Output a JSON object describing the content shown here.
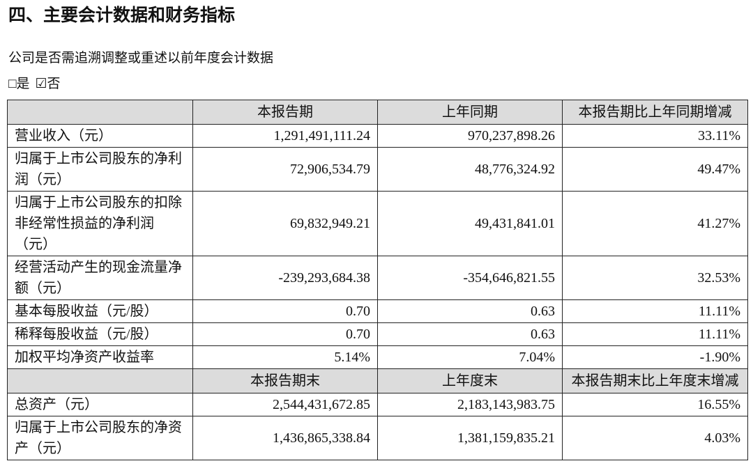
{
  "header": {
    "title": "四、主要会计数据和财务指标"
  },
  "question": "公司是否需追溯调整或重述以前年度会计数据",
  "options": [
    "□是",
    "☑否"
  ],
  "table": {
    "sections": [
      {
        "columns": [
          "本报告期",
          "上年同期",
          "本报告期比上年同期增减"
        ],
        "rows": [
          {
            "label": "营业收入（元）",
            "values": [
              "1,291,491,111.24",
              "970,237,898.26",
              "33.11%"
            ]
          },
          {
            "label": "归属于上市公司股东的净利润（元）",
            "values": [
              "72,906,534.79",
              "48,776,324.92",
              "49.47%"
            ]
          },
          {
            "label": "归属于上市公司股东的扣除非经常性损益的净利润（元）",
            "values": [
              "69,832,949.21",
              "49,431,841.01",
              "41.27%"
            ]
          },
          {
            "label": "经营活动产生的现金流量净额（元）",
            "values": [
              "-239,293,684.38",
              "-354,646,821.55",
              "32.53%"
            ]
          },
          {
            "label": "基本每股收益（元/股）",
            "values": [
              "0.70",
              "0.63",
              "11.11%"
            ]
          },
          {
            "label": "稀释每股收益（元/股）",
            "values": [
              "0.70",
              "0.63",
              "11.11%"
            ]
          },
          {
            "label": "加权平均净资产收益率",
            "values": [
              "5.14%",
              "7.04%",
              "-1.90%"
            ]
          }
        ]
      },
      {
        "columns": [
          "本报告期末",
          "上年度末",
          "本报告期末比上年度末增减"
        ],
        "rows": [
          {
            "label": "总资产（元）",
            "values": [
              "2,544,431,672.85",
              "2,183,143,983.75",
              "16.55%"
            ]
          },
          {
            "label": "归属于上市公司股东的净资产（元）",
            "values": [
              "1,436,865,338.84",
              "1,381,159,835.21",
              "4.03%"
            ]
          }
        ]
      }
    ]
  }
}
